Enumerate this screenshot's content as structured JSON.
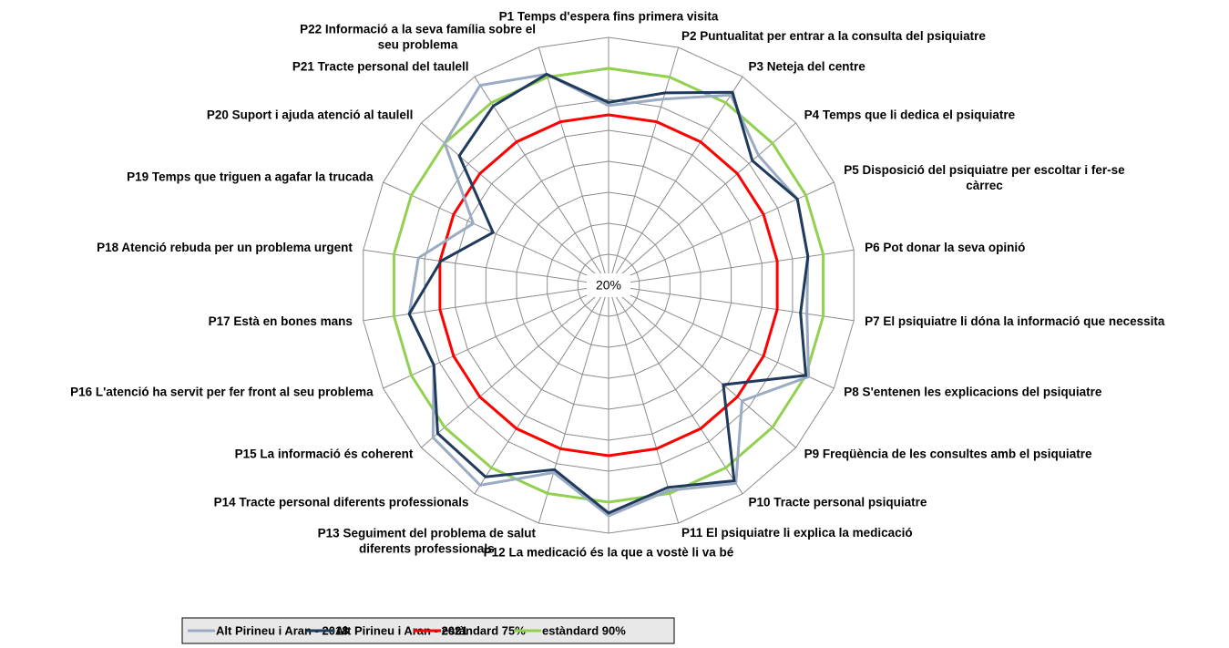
{
  "chart_data": {
    "type": "radar",
    "categories": [
      "P1 Temps d'espera fins primera visita",
      "P2 Puntualitat per entrar a la consulta del psiquiatre",
      "P3 Neteja del centre",
      "P4 Temps que li dedica el psiquiatre",
      "P5 Disposició del psiquiatre per escoltar i fer-se càrrec",
      "P6 Pot donar la seva opinió",
      "P7 El psiquiatre li dóna la informació que necessita",
      "P8 S'entenen les explicacions del psiquiatre",
      "P9 Freqüència de les consultes amb el psiquiatre",
      "P10 Tracte personal psiquiatre",
      "P11 El psiquiatre li explica la medicació",
      "P12 La medicació és la que a vostè li va bé",
      "P13 Seguiment del problema de salut diferents professionals",
      "P14 Tracte personal diferents professionals",
      "P15 La informació és coherent",
      "P16 L'atenció ha servit per fer front al seu problema",
      "P17 Està en bones mans",
      "P18 Atenció rebuda per un problema urgent",
      "P19 Temps que triguen a agafar la trucada",
      "P20 Suport i ajuda atenció al taulell",
      "P21 Tracte personal del taulell",
      "P22 Informació a la seva família sobre el seu problema"
    ],
    "series": [
      {
        "name": "Alt Pirineu i Aran - 2018",
        "color": "#9aabc3",
        "values": [
          78,
          82.6,
          93,
          84,
          87,
          85,
          84.7,
          91,
          77,
          96,
          89,
          94.4,
          83,
          96.7,
          95,
          82,
          85,
          82,
          68,
          90,
          96.7,
          91
        ]
      },
      {
        "name": "Alt Pirineu i Aran - 2021",
        "color": "#1f3a5c",
        "values": [
          79,
          84.7,
          94,
          81.4,
          87,
          85,
          82.6,
          90,
          69,
          95,
          88,
          93.5,
          82,
          93.5,
          93,
          82,
          85,
          74.7,
          61,
          83.8,
          88.8,
          91
        ]
      },
      {
        "name": "estàndard 75%",
        "color": "#ff0000",
        "values": [
          75,
          75,
          75,
          75,
          75,
          75,
          75,
          75,
          75,
          75,
          75,
          75,
          75,
          75,
          75,
          75,
          75,
          75,
          75,
          75,
          75,
          75
        ]
      },
      {
        "name": "estàndard 90%",
        "color": "#92d050",
        "values": [
          90,
          90,
          90,
          90,
          90,
          90,
          90,
          90,
          90,
          90,
          90,
          90,
          90,
          90,
          90,
          90,
          90,
          90,
          90,
          90,
          90,
          90
        ]
      }
    ],
    "ylim": [
      20,
      100
    ],
    "yticks": [
      {
        "value": 20,
        "label": "20%"
      }
    ],
    "rings": [
      30,
      40,
      50,
      60,
      70,
      80,
      90,
      100
    ],
    "legend": "bottom"
  }
}
